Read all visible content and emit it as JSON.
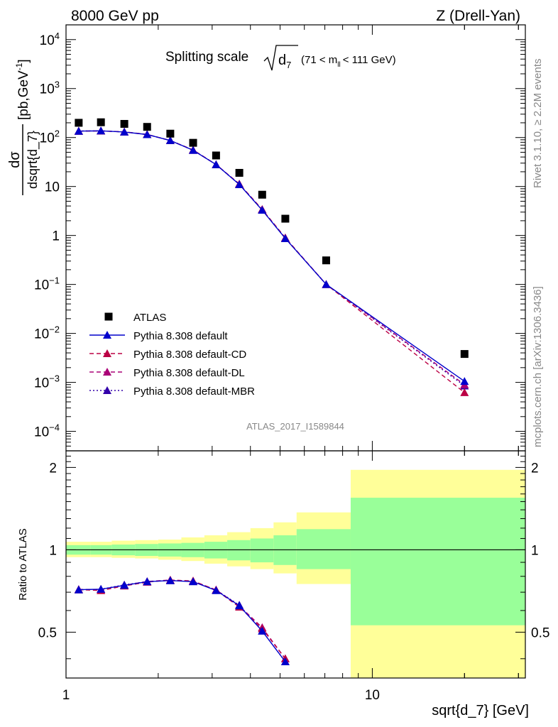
{
  "header": {
    "left": "8000 GeV pp",
    "right": "Z (Drell-Yan)"
  },
  "title": {
    "main": "Splitting scale",
    "sub": "7",
    "cut_pre": "(71 < m",
    "cut_sub": "ll",
    "cut_post": "< 111 GeV)"
  },
  "side_labels": {
    "rivet": "Rivet 3.1.10, ≥ 2.2M events",
    "mcplots": "mcplots.cern.ch [arXiv:1306.3436]"
  },
  "analysis_label": "ATLAS_2017_I1589844",
  "axes": {
    "ylabel_num": "dσ",
    "ylabel_den": "dsqrt{d_7}",
    "ylabel_unit": "[pb,GeV",
    "ylabel_unit_sup": "-1",
    "ylabel_unit_end": "]",
    "ratio_ylabel": "Ratio to ATLAS",
    "xlabel": "sqrt{d_7} [GeV]",
    "main_yticks": [
      {
        "m": "10",
        "e": "4"
      },
      {
        "m": "10",
        "e": "3"
      },
      {
        "m": "10",
        "e": "2"
      },
      {
        "m": "10",
        "e": ""
      },
      {
        "m": "1",
        "e": ""
      },
      {
        "m": "10",
        "e": "−1"
      },
      {
        "m": "10",
        "e": "−2"
      },
      {
        "m": "10",
        "e": "−3"
      },
      {
        "m": "10",
        "e": "−4"
      }
    ],
    "ratio_yticks": [
      "2",
      "1",
      "0.5"
    ],
    "xticks": [
      "1",
      "10"
    ]
  },
  "colors": {
    "data": "#000000",
    "default": "#0000cc",
    "cd": "#bb0044",
    "dl": "#aa0077",
    "mbr": "#3300aa",
    "band_inner": "#99ff99",
    "band_outer": "#ffff99"
  },
  "chart_data": {
    "type": "scatter",
    "x_scale": "log",
    "xlim": [
      1,
      31.6
    ],
    "main_ylim": [
      4e-05,
      20000
    ],
    "main_y_scale": "log",
    "ratio_ylim": [
      0.34,
      2.3
    ],
    "ratio_y_scale": "log",
    "legend_position": "bottom-left",
    "bin_edges": [
      1.0,
      1.2,
      1.41,
      1.68,
      2.0,
      2.38,
      2.83,
      3.36,
      4.0,
      4.76,
      5.66,
      8.5,
      31.6
    ],
    "series": [
      {
        "name": "ATLAS",
        "key": "data",
        "marker": "square",
        "line": "none",
        "x": [
          1.1,
          1.3,
          1.55,
          1.84,
          2.19,
          2.6,
          3.09,
          3.68,
          4.37,
          5.2,
          7.07,
          20.0
        ],
        "y": [
          200,
          205,
          190,
          165,
          120,
          78,
          43,
          19,
          6.8,
          2.2,
          0.31,
          0.0038
        ]
      },
      {
        "name": "Pythia 8.308 default",
        "key": "default",
        "marker": "triangle",
        "line": "solid",
        "x": [
          1.1,
          1.3,
          1.55,
          1.84,
          2.19,
          2.6,
          3.09,
          3.68,
          4.37,
          5.2,
          7.07,
          20.0
        ],
        "y": [
          135,
          137,
          130,
          115,
          87,
          55,
          28,
          11,
          3.3,
          0.87,
          0.1,
          0.00105
        ]
      },
      {
        "name": "Pythia 8.308 default-CD",
        "key": "cd",
        "marker": "triangle",
        "line": "dashed",
        "x": [
          1.1,
          1.3,
          1.55,
          1.84,
          2.19,
          2.6,
          3.09,
          3.68,
          4.37,
          5.2,
          7.07,
          20.0
        ],
        "y": [
          135,
          136,
          131,
          116,
          87,
          56,
          28,
          11.3,
          3.4,
          0.9,
          0.1,
          0.00062
        ]
      },
      {
        "name": "Pythia 8.308 default-DL",
        "key": "dl",
        "marker": "triangle",
        "line": "dashed",
        "x": [
          1.1,
          1.3,
          1.55,
          1.84,
          2.19,
          2.6,
          3.09,
          3.68,
          4.37,
          5.2,
          7.07,
          20.0
        ],
        "y": [
          135,
          137,
          130,
          115,
          87,
          55,
          28,
          11.2,
          3.4,
          0.88,
          0.1,
          0.0009
        ]
      },
      {
        "name": "Pythia 8.308 default-MBR",
        "key": "mbr",
        "marker": "triangle",
        "line": "dotted",
        "x": [
          1.1,
          1.3,
          1.55,
          1.84,
          2.19,
          2.6,
          3.09,
          3.68,
          4.37,
          5.2,
          7.07,
          20.0
        ],
        "y": [
          136,
          137,
          130,
          115,
          87,
          55,
          28,
          11,
          3.3,
          0.87,
          0.1,
          0.00085
        ]
      }
    ],
    "ratio_series": [
      {
        "key": "default",
        "x": [
          1.1,
          1.3,
          1.55,
          1.84,
          2.19,
          2.6,
          3.09,
          3.68,
          4.37,
          5.2
        ],
        "y": [
          0.715,
          0.718,
          0.742,
          0.765,
          0.772,
          0.765,
          0.71,
          0.625,
          0.505,
          0.39
        ]
      },
      {
        "key": "cd",
        "x": [
          1.1,
          1.3,
          1.55,
          1.84,
          2.19,
          2.6,
          3.09,
          3.68,
          4.37,
          5.2
        ],
        "y": [
          0.715,
          0.71,
          0.738,
          0.762,
          0.775,
          0.77,
          0.712,
          0.618,
          0.515,
          0.4
        ]
      },
      {
        "key": "dl",
        "x": [
          1.1,
          1.3,
          1.55,
          1.84,
          2.19,
          2.6,
          3.09,
          3.68,
          4.37,
          5.2
        ],
        "y": [
          0.717,
          0.716,
          0.742,
          0.766,
          0.776,
          0.768,
          0.714,
          0.624,
          0.52,
          0.4
        ]
      },
      {
        "key": "mbr",
        "x": [
          1.1,
          1.3,
          1.55,
          1.84,
          2.19,
          2.6,
          3.09,
          3.68,
          4.37,
          5.2
        ],
        "y": [
          0.714,
          0.718,
          0.745,
          0.765,
          0.772,
          0.767,
          0.713,
          0.628,
          0.505,
          0.39
        ]
      }
    ],
    "uncertainty_bands": {
      "inner": [
        [
          0.96,
          1.04
        ],
        [
          0.96,
          1.04
        ],
        [
          0.955,
          1.045
        ],
        [
          0.95,
          1.05
        ],
        [
          0.945,
          1.055
        ],
        [
          0.94,
          1.06
        ],
        [
          0.93,
          1.07
        ],
        [
          0.915,
          1.085
        ],
        [
          0.9,
          1.1
        ],
        [
          0.88,
          1.13
        ],
        [
          0.85,
          1.19
        ],
        [
          0.53,
          1.55
        ]
      ],
      "outer": [
        [
          0.94,
          1.07
        ],
        [
          0.94,
          1.07
        ],
        [
          0.935,
          1.08
        ],
        [
          0.93,
          1.085
        ],
        [
          0.92,
          1.09
        ],
        [
          0.91,
          1.11
        ],
        [
          0.89,
          1.13
        ],
        [
          0.87,
          1.16
        ],
        [
          0.85,
          1.2
        ],
        [
          0.82,
          1.26
        ],
        [
          0.75,
          1.37
        ],
        [
          0.34,
          1.96
        ]
      ]
    }
  }
}
